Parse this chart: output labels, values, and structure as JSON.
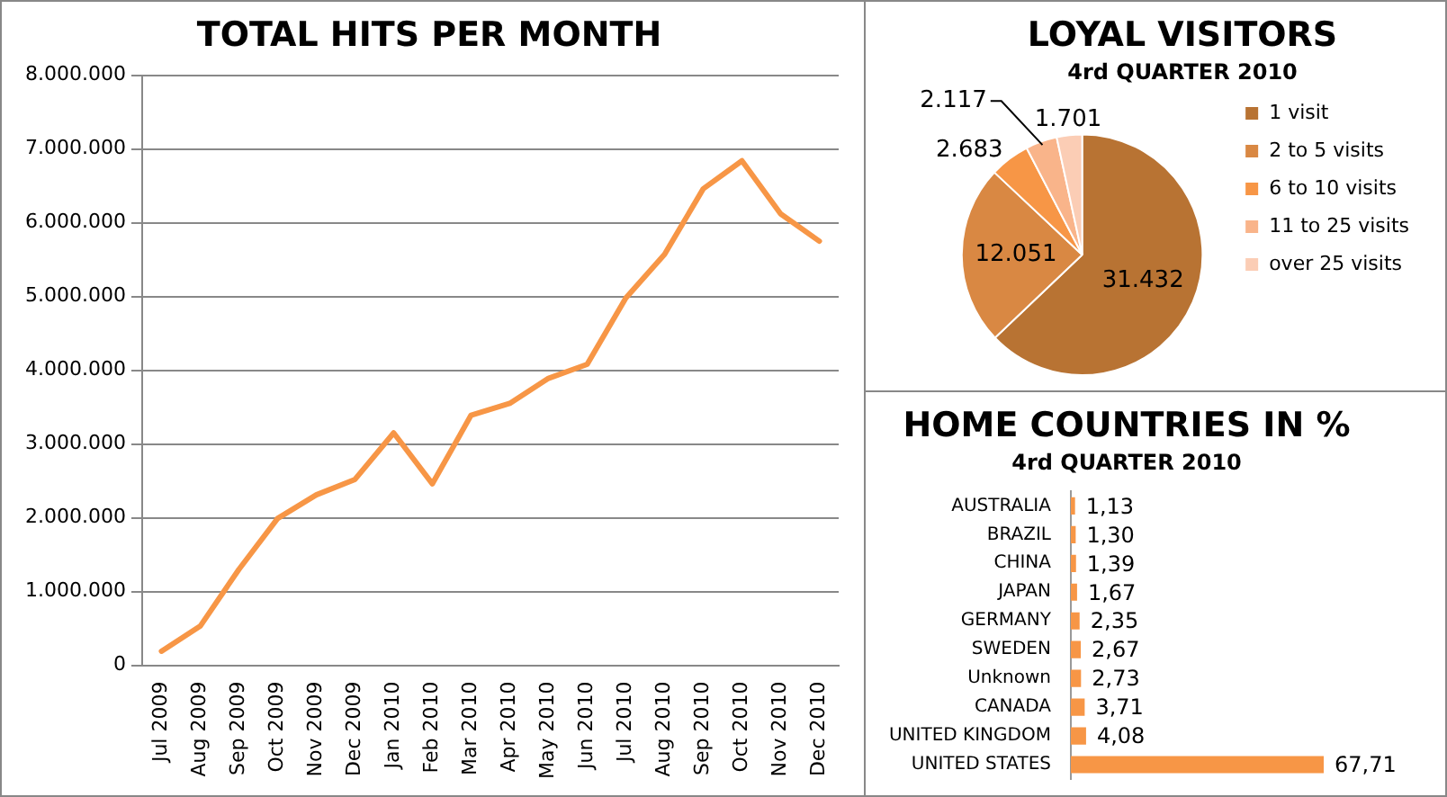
{
  "chart_data": [
    {
      "type": "line",
      "title": "TOTAL HITS PER MONTH",
      "categories": [
        "Jul 2009",
        "Aug 2009",
        "Sep 2009",
        "Oct 2009",
        "Nov 2009",
        "Dec 2009",
        "Jan 2010",
        "Feb 2010",
        "Mar 2010",
        "Apr 2010",
        "May 2010",
        "Jun 2010",
        "Jul 2010",
        "Aug 2010",
        "Sep 2010",
        "Oct 2010",
        "Nov 2010",
        "Dec 2010"
      ],
      "series": [
        {
          "color": "#f79646",
          "values": [
            190000,
            530000,
            1300000,
            1990000,
            2310000,
            2520000,
            3150000,
            2460000,
            3390000,
            3550000,
            3890000,
            4080000,
            4980000,
            5570000,
            6460000,
            6840000,
            6120000,
            5750000
          ]
        }
      ],
      "ylim": [
        0,
        8000000
      ],
      "yticks": [
        {
          "value": 0,
          "label": "0"
        },
        {
          "value": 1000000,
          "label": "1.000.000"
        },
        {
          "value": 2000000,
          "label": "2.000.000"
        },
        {
          "value": 3000000,
          "label": "3.000.000"
        },
        {
          "value": 4000000,
          "label": "4.000.000"
        },
        {
          "value": 5000000,
          "label": "5.000.000"
        },
        {
          "value": 6000000,
          "label": "6.000.000"
        },
        {
          "value": 7000000,
          "label": "7.000.000"
        },
        {
          "value": 8000000,
          "label": "8.000.000"
        }
      ],
      "grid": "y",
      "marker": "none",
      "line_style": "solid"
    },
    {
      "type": "pie",
      "title": "LOYAL VISITORS",
      "subtitle": "4rd QUARTER 2010",
      "categories": [
        "1 visit",
        "2 to 5 visits",
        "6 to 10 visits",
        "11 to 25 visits",
        "over 25 visits"
      ],
      "values": [
        31432,
        12051,
        2683,
        2117,
        1701
      ],
      "value_labels": [
        "31.432",
        "12.051",
        "2.683",
        "2.117",
        "1.701"
      ],
      "colors": [
        "#b87333",
        "#d98843",
        "#f79646",
        "#f9b48a",
        "#fbcdb5"
      ],
      "legend": "right"
    },
    {
      "type": "bar",
      "orientation": "horizontal",
      "title": "HOME COUNTRIES IN %",
      "subtitle": "4rd QUARTER 2010",
      "categories": [
        "AUSTRALIA",
        "BRAZIL",
        "CHINA",
        "JAPAN",
        "GERMANY",
        "SWEDEN",
        "Unknown",
        "CANADA",
        "UNITED KINGDOM",
        "UNITED STATES"
      ],
      "values": [
        1.13,
        1.3,
        1.39,
        1.67,
        2.35,
        2.67,
        2.73,
        3.71,
        4.08,
        67.71
      ],
      "value_labels": [
        "1,13",
        "1,30",
        "1,39",
        "1,67",
        "2,35",
        "2,67",
        "2,73",
        "3,71",
        "4,08",
        "67,71"
      ],
      "color": "#f79646",
      "tick_labels": "y"
    }
  ]
}
